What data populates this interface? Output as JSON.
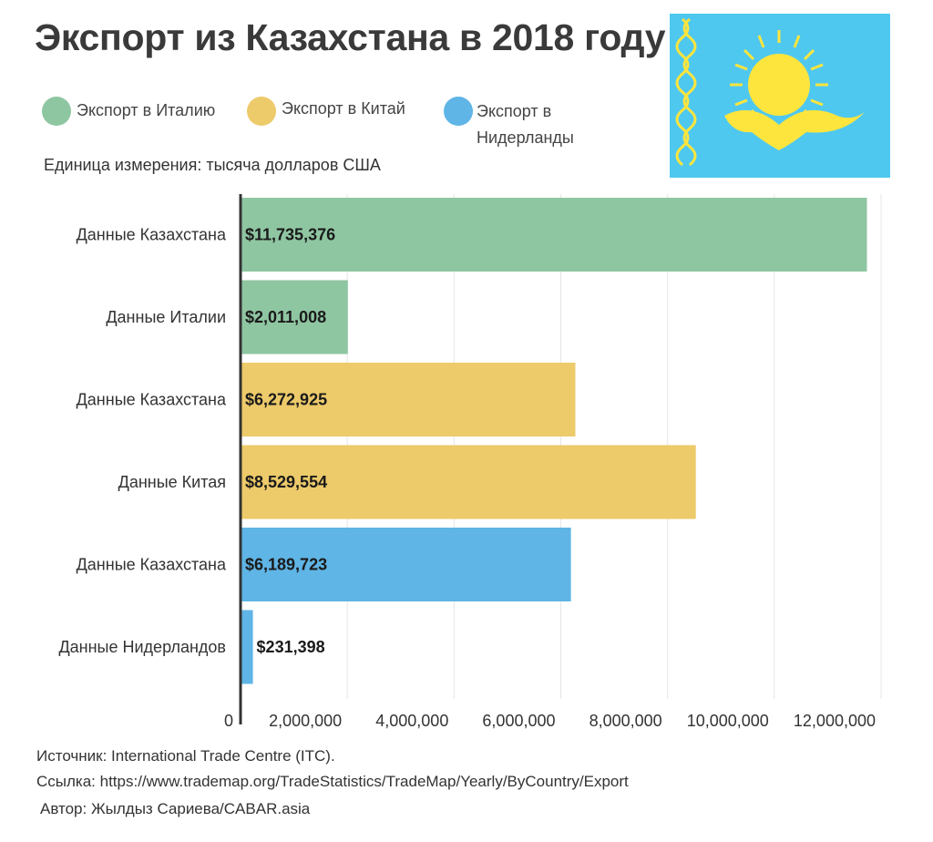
{
  "title": "Экспорт из Казахстана в 2018 году",
  "legend": [
    {
      "label_lines": [
        "Экспорт в Италию"
      ],
      "color": "#8fc6a2"
    },
    {
      "label_lines": [
        "Экспорт в Китай"
      ],
      "color": "#edca6a"
    },
    {
      "label_lines": [
        "Экспорт в",
        "Нидерланды"
      ],
      "color": "#5fb5e5"
    }
  ],
  "unit_note": "Единица измерения: тысяча долларов США",
  "flag": {
    "background": "#4fc8ef",
    "emblem": "#fee53d",
    "icon": "kazakhstan-flag-icon"
  },
  "chart_data": {
    "type": "bar",
    "orientation": "horizontal",
    "categories": [
      "Данные Казахстана",
      "Данные Италии",
      "Данные Казахстана",
      "Данные Китая",
      "Данные Казахстана",
      "Данные Нидерландов"
    ],
    "values": [
      11735376,
      2011008,
      6272925,
      8529554,
      6189723,
      231398
    ],
    "value_labels": [
      "$11,735,376",
      "$2,011,008",
      "$6,272,925",
      "$8,529,554",
      "$6,189,723",
      "$231,398"
    ],
    "bar_colors": [
      "#8fc6a2",
      "#8fc6a2",
      "#edca6a",
      "#edca6a",
      "#5fb5e5",
      "#5fb5e5"
    ],
    "xlim": [
      0,
      12000000
    ],
    "xticks": [
      0,
      2000000,
      4000000,
      6000000,
      8000000,
      10000000,
      12000000
    ],
    "xtick_labels": [
      "0",
      "2,000,000",
      "4,000,000",
      "6,000,000",
      "8,000,000",
      "10,000,000",
      "12,000,000"
    ],
    "grid": true,
    "legend_position": "top-left"
  },
  "footer": {
    "source": "Источник: International Trade Centre (ITC).",
    "link": "Ссылка: https://www.trademap.org/TradeStatistics/TradeMap/Yearly/ByCountry/Export",
    "author": "Автор: Жылдыз Сариева/CABAR.asia"
  }
}
